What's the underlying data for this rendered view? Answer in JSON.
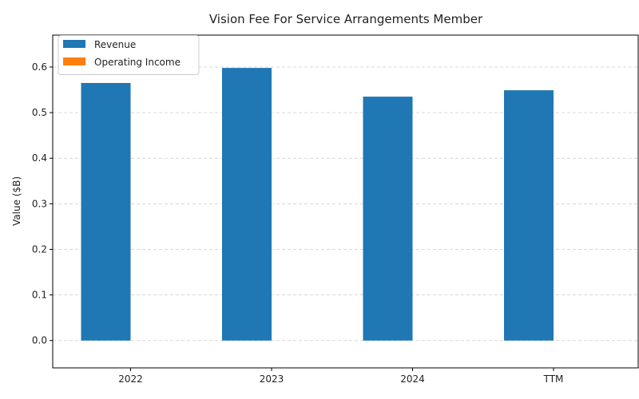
{
  "chart_data": {
    "type": "bar",
    "title": "Vision Fee For Service Arrangements Member",
    "xlabel": "",
    "ylabel": "Value ($B)",
    "categories": [
      "2022",
      "2023",
      "2024",
      "TTM"
    ],
    "series": [
      {
        "name": "Revenue",
        "color": "#1f77b4",
        "values": [
          0.565,
          0.598,
          0.535,
          0.549
        ]
      },
      {
        "name": "Operating Income",
        "color": "#ff7f0e",
        "values": [
          0,
          0,
          0,
          0
        ]
      }
    ],
    "ylim": [
      -0.06,
      0.67
    ],
    "yticks": [
      0.0,
      0.1,
      0.2,
      0.3,
      0.4,
      0.5,
      0.6
    ],
    "ytick_labels": [
      "0.0",
      "0.1",
      "0.2",
      "0.3",
      "0.4",
      "0.5",
      "0.6"
    ],
    "grid": true,
    "legend_position": "top-left"
  }
}
